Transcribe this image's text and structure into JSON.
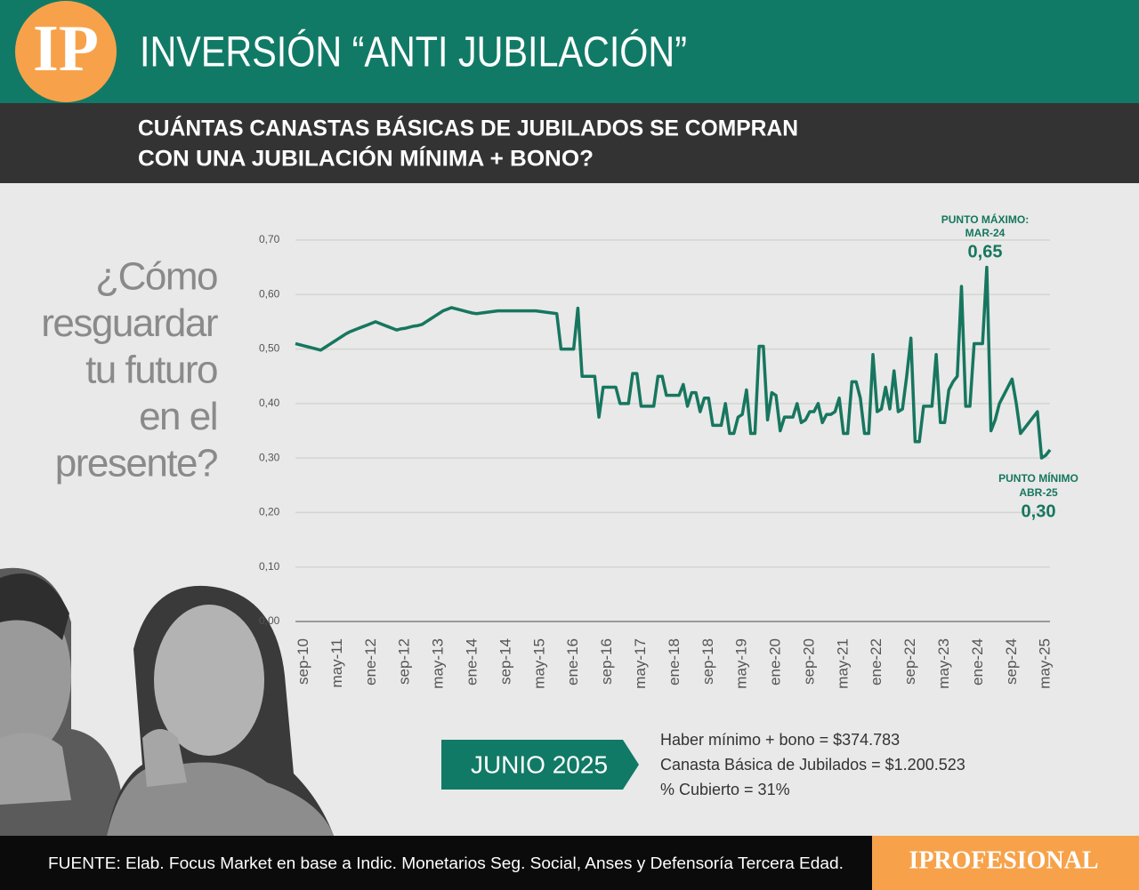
{
  "header": {
    "logo": "IP",
    "title": "INVERSIÓN “ANTI JUBILACIÓN”",
    "subtitle": [
      "CUÁNTAS CANASTAS BÁSICAS DE JUBILADOS SE COMPRAN",
      "CON UNA JUBILACIÓN MÍNIMA + BONO?"
    ]
  },
  "side_text": [
    "¿Cómo",
    "resguardar",
    "tu futuro",
    "en el",
    "presente?"
  ],
  "chart_data": {
    "type": "line",
    "color": "#17765f",
    "grid": true,
    "ylim": [
      0,
      0.7
    ],
    "yticks": [
      {
        "value": 0,
        "label": "0,00"
      },
      {
        "value": 0.1,
        "label": "0,10"
      },
      {
        "value": 0.2,
        "label": "0,20"
      },
      {
        "value": 0.3,
        "label": "0,30"
      },
      {
        "value": 0.4,
        "label": "0,40"
      },
      {
        "value": 0.5,
        "label": "0,50"
      },
      {
        "value": 0.6,
        "label": "0,60"
      },
      {
        "value": 0.7,
        "label": "0,70"
      }
    ],
    "categories": [
      null,
      null,
      "sep-10",
      null,
      null,
      null,
      null,
      null,
      null,
      null,
      "may-11",
      null,
      null,
      null,
      null,
      null,
      null,
      null,
      "ene-12",
      null,
      null,
      null,
      null,
      null,
      null,
      null,
      "sep-12",
      null,
      null,
      null,
      null,
      null,
      null,
      null,
      "may-13",
      null,
      null,
      null,
      null,
      null,
      null,
      null,
      "ene-14",
      null,
      null,
      null,
      null,
      null,
      null,
      null,
      "sep-14",
      null,
      null,
      null,
      null,
      null,
      null,
      null,
      "may-15",
      null,
      null,
      null,
      null,
      null,
      null,
      null,
      "ene-16",
      null,
      null,
      null,
      null,
      null,
      null,
      null,
      "sep-16",
      null,
      null,
      null,
      null,
      null,
      null,
      null,
      "may-17",
      null,
      null,
      null,
      null,
      null,
      null,
      null,
      "ene-18",
      null,
      null,
      null,
      null,
      null,
      null,
      null,
      "sep-18",
      null,
      null,
      null,
      null,
      null,
      null,
      null,
      "may-19",
      null,
      null,
      null,
      null,
      null,
      null,
      null,
      "ene-20",
      null,
      null,
      null,
      null,
      null,
      null,
      null,
      "sep-20",
      null,
      null,
      null,
      null,
      null,
      null,
      null,
      "may-21",
      null,
      null,
      null,
      null,
      null,
      null,
      null,
      "ene-22",
      null,
      null,
      null,
      null,
      null,
      null,
      null,
      "sep-22",
      null,
      null,
      null,
      null,
      null,
      null,
      null,
      "may-23",
      null,
      null,
      null,
      null,
      null,
      null,
      null,
      "ene-24",
      null,
      null,
      null,
      null,
      null,
      null,
      null,
      "sep-24",
      null,
      null,
      null,
      null,
      null,
      null,
      null,
      "may-25",
      null
    ],
    "values": [
      0.51,
      0.508,
      0.506,
      0.504,
      0.502,
      0.5,
      0.498,
      0.503,
      0.508,
      0.513,
      0.518,
      0.523,
      0.528,
      0.532,
      0.535,
      0.538,
      0.541,
      0.544,
      0.547,
      0.55,
      0.547,
      0.544,
      0.541,
      0.538,
      0.535,
      0.537,
      0.538,
      0.54,
      0.542,
      0.543,
      0.545,
      0.55,
      0.555,
      0.56,
      0.565,
      0.57,
      0.573,
      0.576,
      0.574,
      0.572,
      0.57,
      0.568,
      0.566,
      0.565,
      0.566,
      0.567,
      0.568,
      0.569,
      0.57,
      0.57,
      0.57,
      0.57,
      0.57,
      0.57,
      0.57,
      0.57,
      0.57,
      0.57,
      0.569,
      0.568,
      0.567,
      0.566,
      0.565,
      0.5,
      0.5,
      0.5,
      0.5,
      0.575,
      0.45,
      0.45,
      0.45,
      0.45,
      0.375,
      0.43,
      0.43,
      0.43,
      0.43,
      0.4,
      0.4,
      0.4,
      0.455,
      0.455,
      0.395,
      0.395,
      0.395,
      0.395,
      0.45,
      0.45,
      0.415,
      0.415,
      0.415,
      0.415,
      0.435,
      0.395,
      0.42,
      0.42,
      0.385,
      0.41,
      0.41,
      0.36,
      0.36,
      0.36,
      0.4,
      0.345,
      0.345,
      0.375,
      0.38,
      0.425,
      0.345,
      0.345,
      0.505,
      0.505,
      0.37,
      0.42,
      0.415,
      0.35,
      0.375,
      0.375,
      0.375,
      0.4,
      0.365,
      0.37,
      0.385,
      0.385,
      0.4,
      0.365,
      0.38,
      0.38,
      0.385,
      0.41,
      0.345,
      0.345,
      0.44,
      0.44,
      0.41,
      0.345,
      0.345,
      0.49,
      0.385,
      0.39,
      0.43,
      0.39,
      0.46,
      0.385,
      0.39,
      0.45,
      0.52,
      0.33,
      0.33,
      0.395,
      0.395,
      0.395,
      0.49,
      0.365,
      0.365,
      0.425,
      0.44,
      0.45,
      0.615,
      0.395,
      0.395,
      0.51,
      0.51,
      0.51,
      0.65,
      0.35,
      0.37,
      0.4,
      0.415,
      0.43,
      0.445,
      0.4,
      0.345,
      0.355,
      0.365,
      0.375,
      0.385,
      0.3,
      0.305,
      0.315
    ],
    "annotations": {
      "max": [
        "PUNTO MÁXIMO:",
        "MAR-24",
        "0,65"
      ],
      "min": [
        "PUNTO MÍNIMO",
        "ABR-25",
        "0,30"
      ]
    }
  },
  "info": {
    "date": "JUNIO 2025",
    "lines": [
      "Haber mínimo + bono = $374.783",
      "Canasta Básica de Jubilados = $1.200.523",
      "% Cubierto = 31%"
    ]
  },
  "footer": {
    "source": "FUENTE: Elab. Focus Market en base a Indic. Monetarios Seg. Social, Anses y Defensoría Tercera Edad.",
    "brand": "IPROFESIONAL"
  }
}
